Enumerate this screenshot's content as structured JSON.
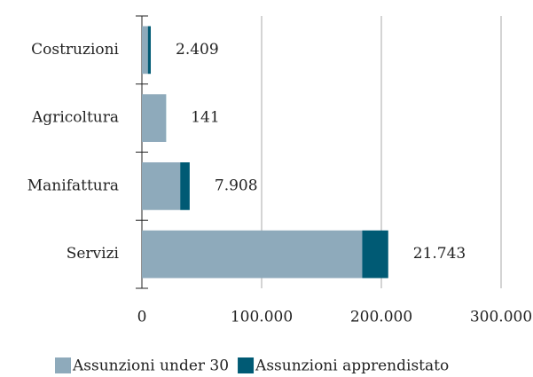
{
  "chart_data": {
    "type": "stacked-barh",
    "categories": [
      "Costruzioni",
      "Agricoltura",
      "Manifattura",
      "Servizi"
    ],
    "series": [
      {
        "name": "Assunzioni under 30",
        "color": "#8eaabb",
        "values": [
          5000,
          20000,
          32000,
          184000
        ]
      },
      {
        "name": "Assunzioni apprendistato",
        "color": "#005a74",
        "values": [
          2409,
          141,
          7908,
          21743
        ],
        "value_labels": [
          "2.409",
          "141",
          "7.908",
          "21.743"
        ]
      }
    ],
    "xlim": [
      0,
      300000
    ],
    "xticks": [
      0,
      {
        "value": 100000,
        "label": "100.000"
      },
      {
        "value": 200000,
        "label": "200.000"
      },
      {
        "value": 300000,
        "label": "300.000"
      }
    ],
    "grid": true,
    "legend": "bottom"
  }
}
